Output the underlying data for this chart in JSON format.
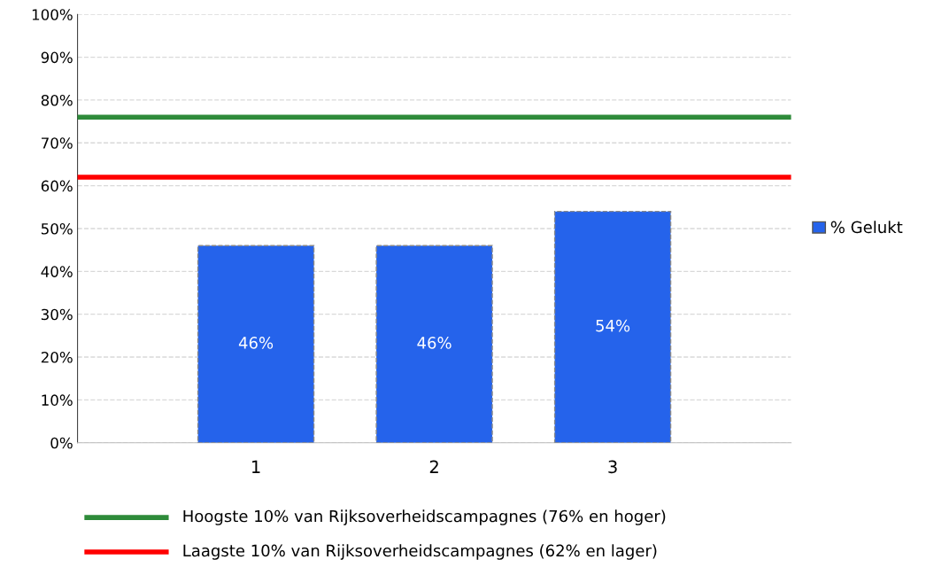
{
  "chart_data": {
    "type": "bar",
    "categories": [
      "1",
      "2",
      "3"
    ],
    "series": [
      {
        "name": "% Gelukt",
        "color": "#2563eb",
        "values": [
          46,
          46,
          54
        ],
        "value_labels": [
          "46%",
          "46%",
          "54%"
        ]
      }
    ],
    "ylim": [
      0,
      100
    ],
    "yticks": [
      {
        "value": 0,
        "label": "0%"
      },
      {
        "value": 10,
        "label": "10%"
      },
      {
        "value": 20,
        "label": "20%"
      },
      {
        "value": 30,
        "label": "30%"
      },
      {
        "value": 40,
        "label": "40%"
      },
      {
        "value": 50,
        "label": "50%"
      },
      {
        "value": 60,
        "label": "60%"
      },
      {
        "value": 70,
        "label": "70%"
      },
      {
        "value": 80,
        "label": "80%"
      },
      {
        "value": 90,
        "label": "90%"
      },
      {
        "value": 100,
        "label": "100%"
      }
    ],
    "grid": "y",
    "legend": "right",
    "ref_lines": [
      {
        "axis": "y",
        "value": 76,
        "label": "Hoogste 10% van Rijksoverheidscampagnes (76% en hoger)",
        "color": "#2e8b3a"
      },
      {
        "axis": "y",
        "value": 62,
        "label": "Laagste 10% van Rijksoverheidscampagnes (62% en lager)",
        "color": "#ff0000"
      }
    ]
  }
}
